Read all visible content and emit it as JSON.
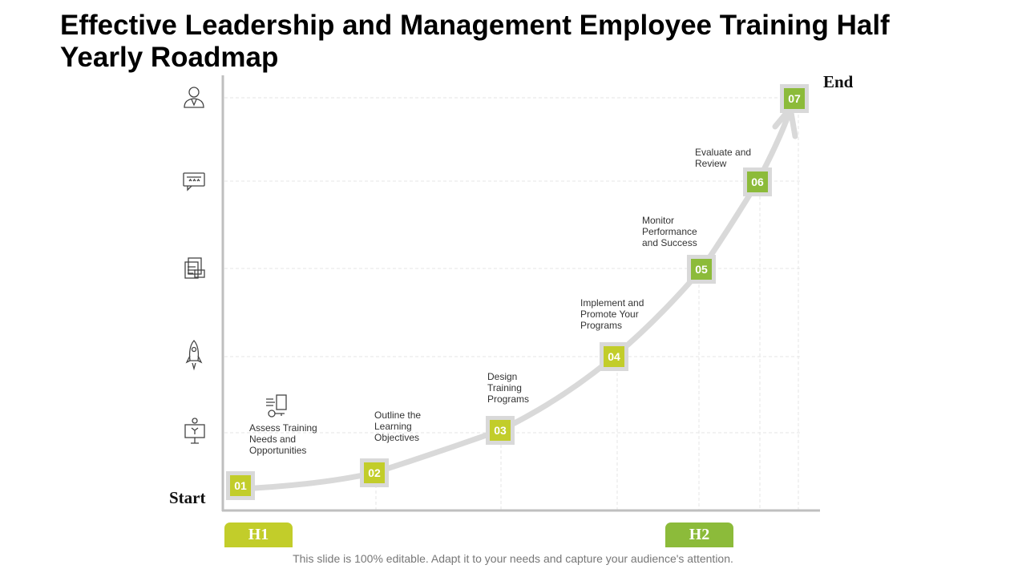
{
  "title": "Effective Leadership and Management Employee Training Half Yearly Roadmap",
  "start_label": "Start",
  "end_label": "End",
  "steps": [
    {
      "number": "01",
      "label": "Assess Training Needs and Opportunities"
    },
    {
      "number": "02",
      "label": "Outline the Learning Objectives"
    },
    {
      "number": "03",
      "label": "Design Training Programs"
    },
    {
      "number": "04",
      "label": "Implement and Promote Your Programs"
    },
    {
      "number": "05",
      "label": "Monitor Performance and Success"
    },
    {
      "number": "06",
      "label": "Evaluate and Review"
    },
    {
      "number": "07",
      "label": ""
    }
  ],
  "halves": [
    {
      "label": "H1",
      "color": "#c2cd2a"
    },
    {
      "label": "H2",
      "color": "#8cbb3a"
    }
  ],
  "side_icons": [
    "user-icon",
    "feedback-rating-icon",
    "document-stack-icon",
    "rocket-icon",
    "training-board-icon"
  ],
  "footer": "This slide is 100% editable. Adapt it to your needs and capture your audience's attention.",
  "colors": {
    "lime": "#c2cd2a",
    "green": "#8cbb3a",
    "track": "#d9d9d9",
    "axis": "#bfbfbf"
  }
}
